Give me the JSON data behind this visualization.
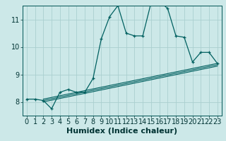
{
  "xlabel": "Humidex (Indice chaleur)",
  "bg_color": "#cce8e8",
  "grid_color": "#aacfcf",
  "line_color": "#006060",
  "xlim": [
    -0.5,
    23.5
  ],
  "ylim": [
    7.5,
    11.5
  ],
  "yticks": [
    8,
    9,
    10,
    11
  ],
  "xticks": [
    0,
    1,
    2,
    3,
    4,
    5,
    6,
    7,
    8,
    9,
    10,
    11,
    12,
    13,
    14,
    15,
    16,
    17,
    18,
    19,
    20,
    21,
    22,
    23
  ],
  "line1_x": [
    0,
    1,
    2,
    3,
    4,
    5,
    6,
    7,
    8,
    9,
    10,
    11,
    12,
    13,
    14,
    15,
    16,
    17,
    18,
    19,
    20,
    21,
    22,
    23
  ],
  "line1_y": [
    8.1,
    8.1,
    8.05,
    7.75,
    8.35,
    8.45,
    8.35,
    8.35,
    8.85,
    10.3,
    11.1,
    11.5,
    10.5,
    10.4,
    10.4,
    11.6,
    11.65,
    11.4,
    10.4,
    10.35,
    9.45,
    9.8,
    9.8,
    9.4
  ],
  "line2_x": [
    2,
    23
  ],
  "line2_y": [
    8.1,
    9.4
  ],
  "line3_x": [
    2,
    23
  ],
  "line3_y": [
    8.0,
    9.3
  ],
  "line4_x": [
    2,
    23
  ],
  "line4_y": [
    8.05,
    9.35
  ],
  "xlabel_fontsize": 8,
  "tick_fontsize": 7
}
